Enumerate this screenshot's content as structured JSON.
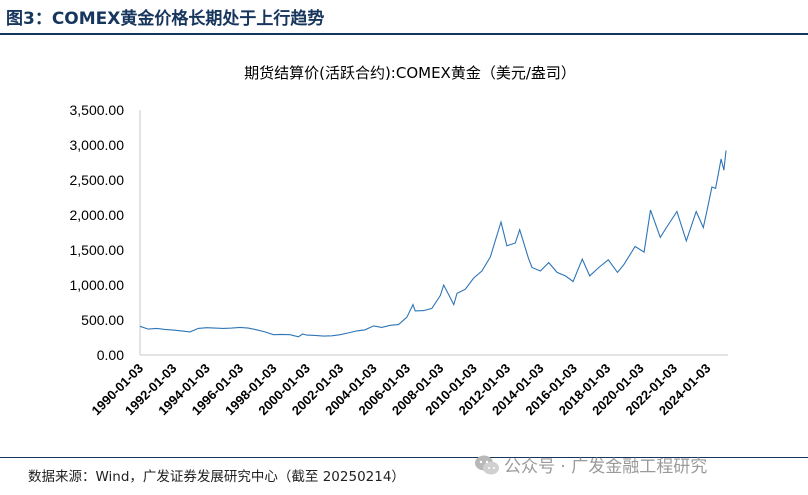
{
  "header": {
    "figure_title": "图3：COMEX黄金价格长期处于上行趋势"
  },
  "footer": {
    "source": "数据来源：Wind，广发证券发展研究中心（截至 20250214）",
    "watermark": "公众号 · 广发金融工程研究",
    "watermark_icon": "wechat-icon"
  },
  "colors": {
    "line": "#2e75b6",
    "title": "#17365d"
  },
  "chart_data": {
    "type": "line",
    "title": "期货结算价(活跃合约):COMEX黄金（美元/盎司）",
    "xlabel": "",
    "ylabel": "",
    "ylim": [
      0,
      3500
    ],
    "xlim": [
      "1990-01-03",
      "2025-02-14"
    ],
    "yticks": [
      "0.00",
      "500.00",
      "1,000.00",
      "1,500.00",
      "2,000.00",
      "2,500.00",
      "3,000.00",
      "3,500.00"
    ],
    "xticks": [
      "1990-01-03",
      "1992-01-03",
      "1994-01-03",
      "1996-01-03",
      "1998-01-03",
      "2000-01-03",
      "2002-01-03",
      "2004-01-03",
      "2006-01-03",
      "2008-01-03",
      "2010-01-03",
      "2012-01-03",
      "2014-01-03",
      "2016-01-03",
      "2018-01-03",
      "2020-01-03",
      "2022-01-03",
      "2024-01-03"
    ],
    "grid": false,
    "legend": "none",
    "series": [
      {
        "x": [
          "1990-01-03",
          "1990-07-01",
          "1991-01-01",
          "1991-07-01",
          "1992-01-01",
          "1992-07-01",
          "1993-01-01",
          "1993-07-01",
          "1994-01-01",
          "1994-07-01",
          "1995-01-01",
          "1995-07-01",
          "1996-01-01",
          "1996-07-01",
          "1997-01-01",
          "1997-07-01",
          "1998-01-01",
          "1998-07-01",
          "1999-01-01",
          "1999-07-01",
          "1999-10-01",
          "2000-01-01",
          "2000-07-01",
          "2001-01-01",
          "2001-07-01",
          "2002-01-01",
          "2002-07-01",
          "2003-01-01",
          "2003-07-01",
          "2004-01-01",
          "2004-07-01",
          "2005-01-01",
          "2005-07-01",
          "2006-01-01",
          "2006-05-15",
          "2006-07-01",
          "2007-01-01",
          "2007-07-01",
          "2008-01-01",
          "2008-03-17",
          "2008-10-24",
          "2009-01-01",
          "2009-07-01",
          "2010-01-01",
          "2010-07-01",
          "2011-01-01",
          "2011-08-22",
          "2011-12-29",
          "2012-07-01",
          "2012-10-05",
          "2013-04-16",
          "2013-07-01",
          "2013-12-31",
          "2014-07-01",
          "2015-01-01",
          "2015-07-01",
          "2015-12-17",
          "2016-07-06",
          "2016-12-15",
          "2017-07-01",
          "2018-01-25",
          "2018-08-16",
          "2019-01-01",
          "2019-09-04",
          "2020-03-19",
          "2020-08-06",
          "2021-03-08",
          "2021-07-01",
          "2022-03-08",
          "2022-09-28",
          "2023-05-04",
          "2023-10-06",
          "2023-12-28",
          "2024-04-12",
          "2024-07-01",
          "2024-10-30",
          "2024-12-31",
          "2025-02-14"
        ],
        "values": [
          410,
          370,
          380,
          365,
          355,
          345,
          330,
          380,
          390,
          385,
          380,
          385,
          395,
          385,
          360,
          330,
          290,
          295,
          290,
          260,
          300,
          285,
          280,
          270,
          275,
          290,
          315,
          345,
          360,
          415,
          395,
          425,
          435,
          540,
          720,
          630,
          635,
          665,
          850,
          1000,
          720,
          880,
          940,
          1100,
          1200,
          1400,
          1900,
          1560,
          1600,
          1790,
          1380,
          1250,
          1200,
          1320,
          1180,
          1130,
          1050,
          1370,
          1130,
          1250,
          1360,
          1180,
          1290,
          1550,
          1470,
          2070,
          1680,
          1800,
          2050,
          1630,
          2050,
          1820,
          2070,
          2400,
          2380,
          2800,
          2640,
          2920
        ]
      }
    ]
  }
}
